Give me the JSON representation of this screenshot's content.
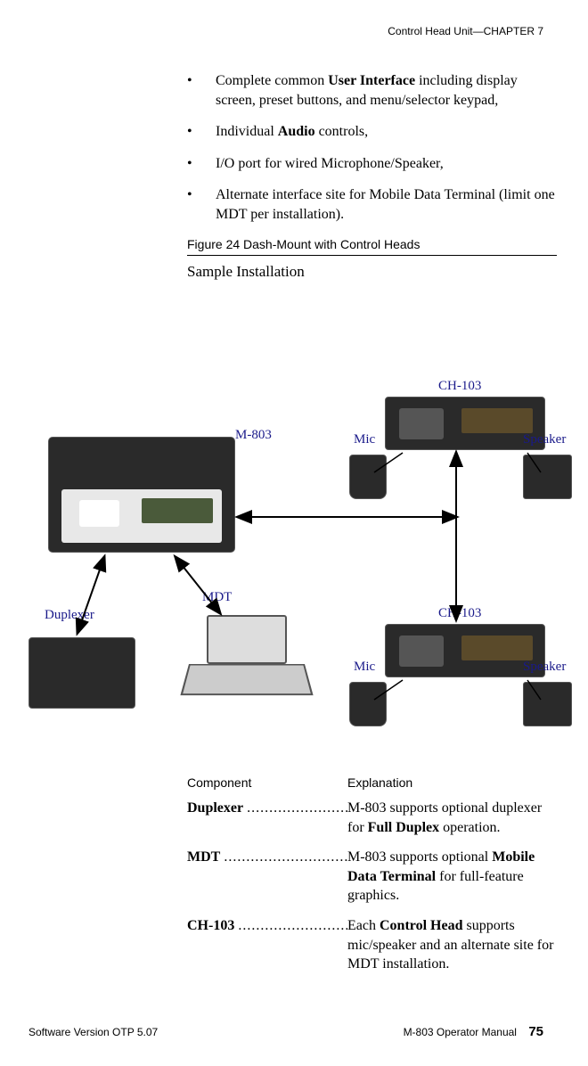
{
  "header": "Control Head Unit—CHAPTER 7",
  "bullets": [
    {
      "pre": "Complete common ",
      "bold": "User Interface",
      "post": " including display screen, preset buttons, and menu/selector keypad,"
    },
    {
      "pre": "Individual ",
      "bold": "Audio",
      "post": " controls,"
    },
    {
      "pre": "I/O port for wired Microphone/Speaker,",
      "bold": "",
      "post": ""
    },
    {
      "pre": "Alternate interface site for Mobile Data Terminal (limit one MDT per installation).",
      "bold": "",
      "post": ""
    }
  ],
  "figure_caption": "Figure 24 Dash-Mount with Control Heads",
  "sample": "Sample Installation",
  "diagram": {
    "m803": "M-803",
    "mdt": "MDT",
    "duplexer": "Duplexer",
    "ch103": "CH-103",
    "mic": "Mic",
    "speaker": "Speaker"
  },
  "table": {
    "col1_header": "Component",
    "col2_header": "Explanation",
    "rows": [
      {
        "name": "Duplexer",
        "exp_parts": [
          "M-803 supports optional duplexer for ",
          "Full Duplex",
          " operation."
        ]
      },
      {
        "name": "MDT",
        "exp_parts": [
          "M-803 supports optional ",
          "Mobile Data Terminal",
          " for full-feature graphics."
        ]
      },
      {
        "name": "CH-103",
        "exp_parts": [
          "Each ",
          "Control Head",
          " supports mic/speaker and an alternate site for MDT installation."
        ]
      }
    ]
  },
  "footer": {
    "left": "Software Version OTP 5.07",
    "right_label": "M-803 Operator Manual",
    "page": "75"
  }
}
